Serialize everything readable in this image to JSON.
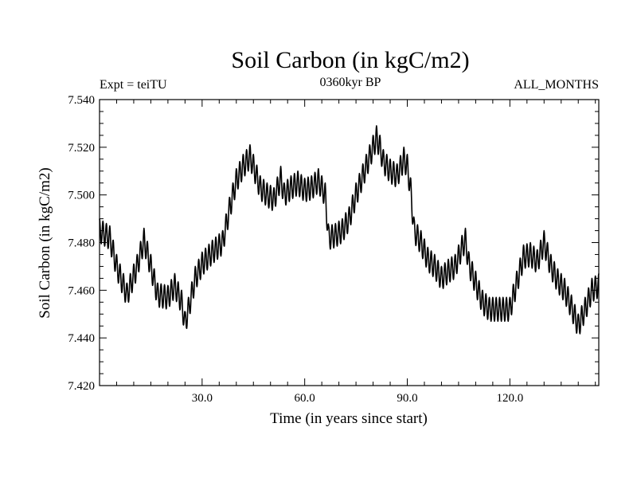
{
  "chart_data": {
    "type": "line",
    "title": "Soil Carbon (in kgC/m2)",
    "subtitle_left": "Expt = teiTU",
    "subtitle_center": "0360kyr BP",
    "subtitle_right": "ALL_MONTHS",
    "xlabel": "Time (in years since start)",
    "ylabel": "Soil Carbon (in kgC/m2)",
    "xlim": [
      0,
      146
    ],
    "ylim": [
      7.42,
      7.54
    ],
    "x_ticks": [
      30,
      60,
      90,
      120
    ],
    "x_tick_labels": [
      "30.0",
      "60.0",
      "90.0",
      "120.0"
    ],
    "y_ticks": [
      7.42,
      7.44,
      7.46,
      7.48,
      7.5,
      7.52,
      7.54
    ],
    "y_tick_labels": [
      "7.420",
      "7.440",
      "7.460",
      "7.480",
      "7.500",
      "7.520",
      "7.540"
    ],
    "seasonal_amplitude": 0.005,
    "series": [
      {
        "name": "Soil Carbon",
        "x": [
          0,
          3,
          5,
          8,
          11,
          13,
          15,
          17,
          20,
          22,
          24,
          25,
          26,
          28,
          30,
          33,
          36,
          38,
          40,
          42,
          44,
          45,
          47,
          49,
          51,
          53,
          54,
          56,
          58,
          60,
          62,
          64,
          66,
          67,
          69,
          71,
          73,
          75,
          77,
          79,
          81,
          82,
          83,
          85,
          87,
          89,
          90,
          91,
          92,
          94,
          96,
          98,
          100,
          102,
          104,
          106,
          107,
          108,
          110,
          112,
          114,
          116,
          118,
          120,
          122,
          124,
          126,
          128,
          130,
          132,
          134,
          136,
          138,
          140,
          142,
          144,
          146
        ],
        "values": [
          7.485,
          7.482,
          7.47,
          7.458,
          7.47,
          7.481,
          7.47,
          7.458,
          7.457,
          7.462,
          7.455,
          7.446,
          7.452,
          7.465,
          7.471,
          7.476,
          7.48,
          7.494,
          7.506,
          7.512,
          7.516,
          7.512,
          7.503,
          7.5,
          7.498,
          7.507,
          7.5,
          7.503,
          7.505,
          7.502,
          7.503,
          7.506,
          7.5,
          7.482,
          7.483,
          7.485,
          7.49,
          7.5,
          7.508,
          7.516,
          7.524,
          7.52,
          7.514,
          7.51,
          7.508,
          7.515,
          7.512,
          7.502,
          7.485,
          7.48,
          7.473,
          7.47,
          7.465,
          7.468,
          7.47,
          7.478,
          7.481,
          7.471,
          7.463,
          7.455,
          7.452,
          7.452,
          7.452,
          7.452,
          7.463,
          7.474,
          7.475,
          7.472,
          7.48,
          7.47,
          7.464,
          7.46,
          7.453,
          7.445,
          7.452,
          7.46,
          7.462
        ]
      }
    ]
  }
}
